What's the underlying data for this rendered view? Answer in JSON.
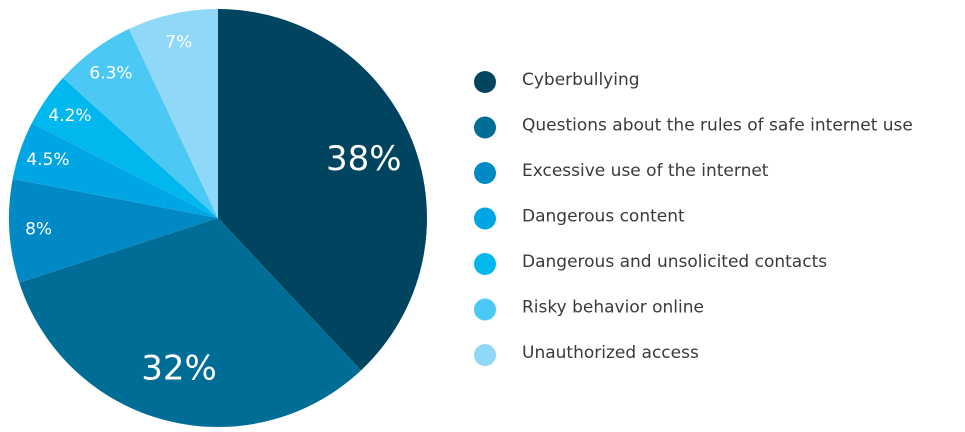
{
  "chart_data": {
    "type": "pie",
    "categories": [
      "Cyberbullying",
      "Questions about the rules of safe internet use",
      "Excessive use of the internet",
      "Dangerous content",
      "Dangerous and unsolicited contacts",
      "Risky behavior online",
      "Unauthorized access"
    ],
    "values": [
      38,
      32,
      8,
      4.5,
      4.2,
      6.3,
      7
    ],
    "value_labels": [
      "38%",
      "32%",
      "8%",
      "4.5%",
      "4.2%",
      "6.3%",
      "7%"
    ],
    "colors": [
      "#00445f",
      "#006d97",
      "#0089c4",
      "#00a5e3",
      "#00b8ee",
      "#4bc8f3",
      "#8fd8f7"
    ]
  }
}
